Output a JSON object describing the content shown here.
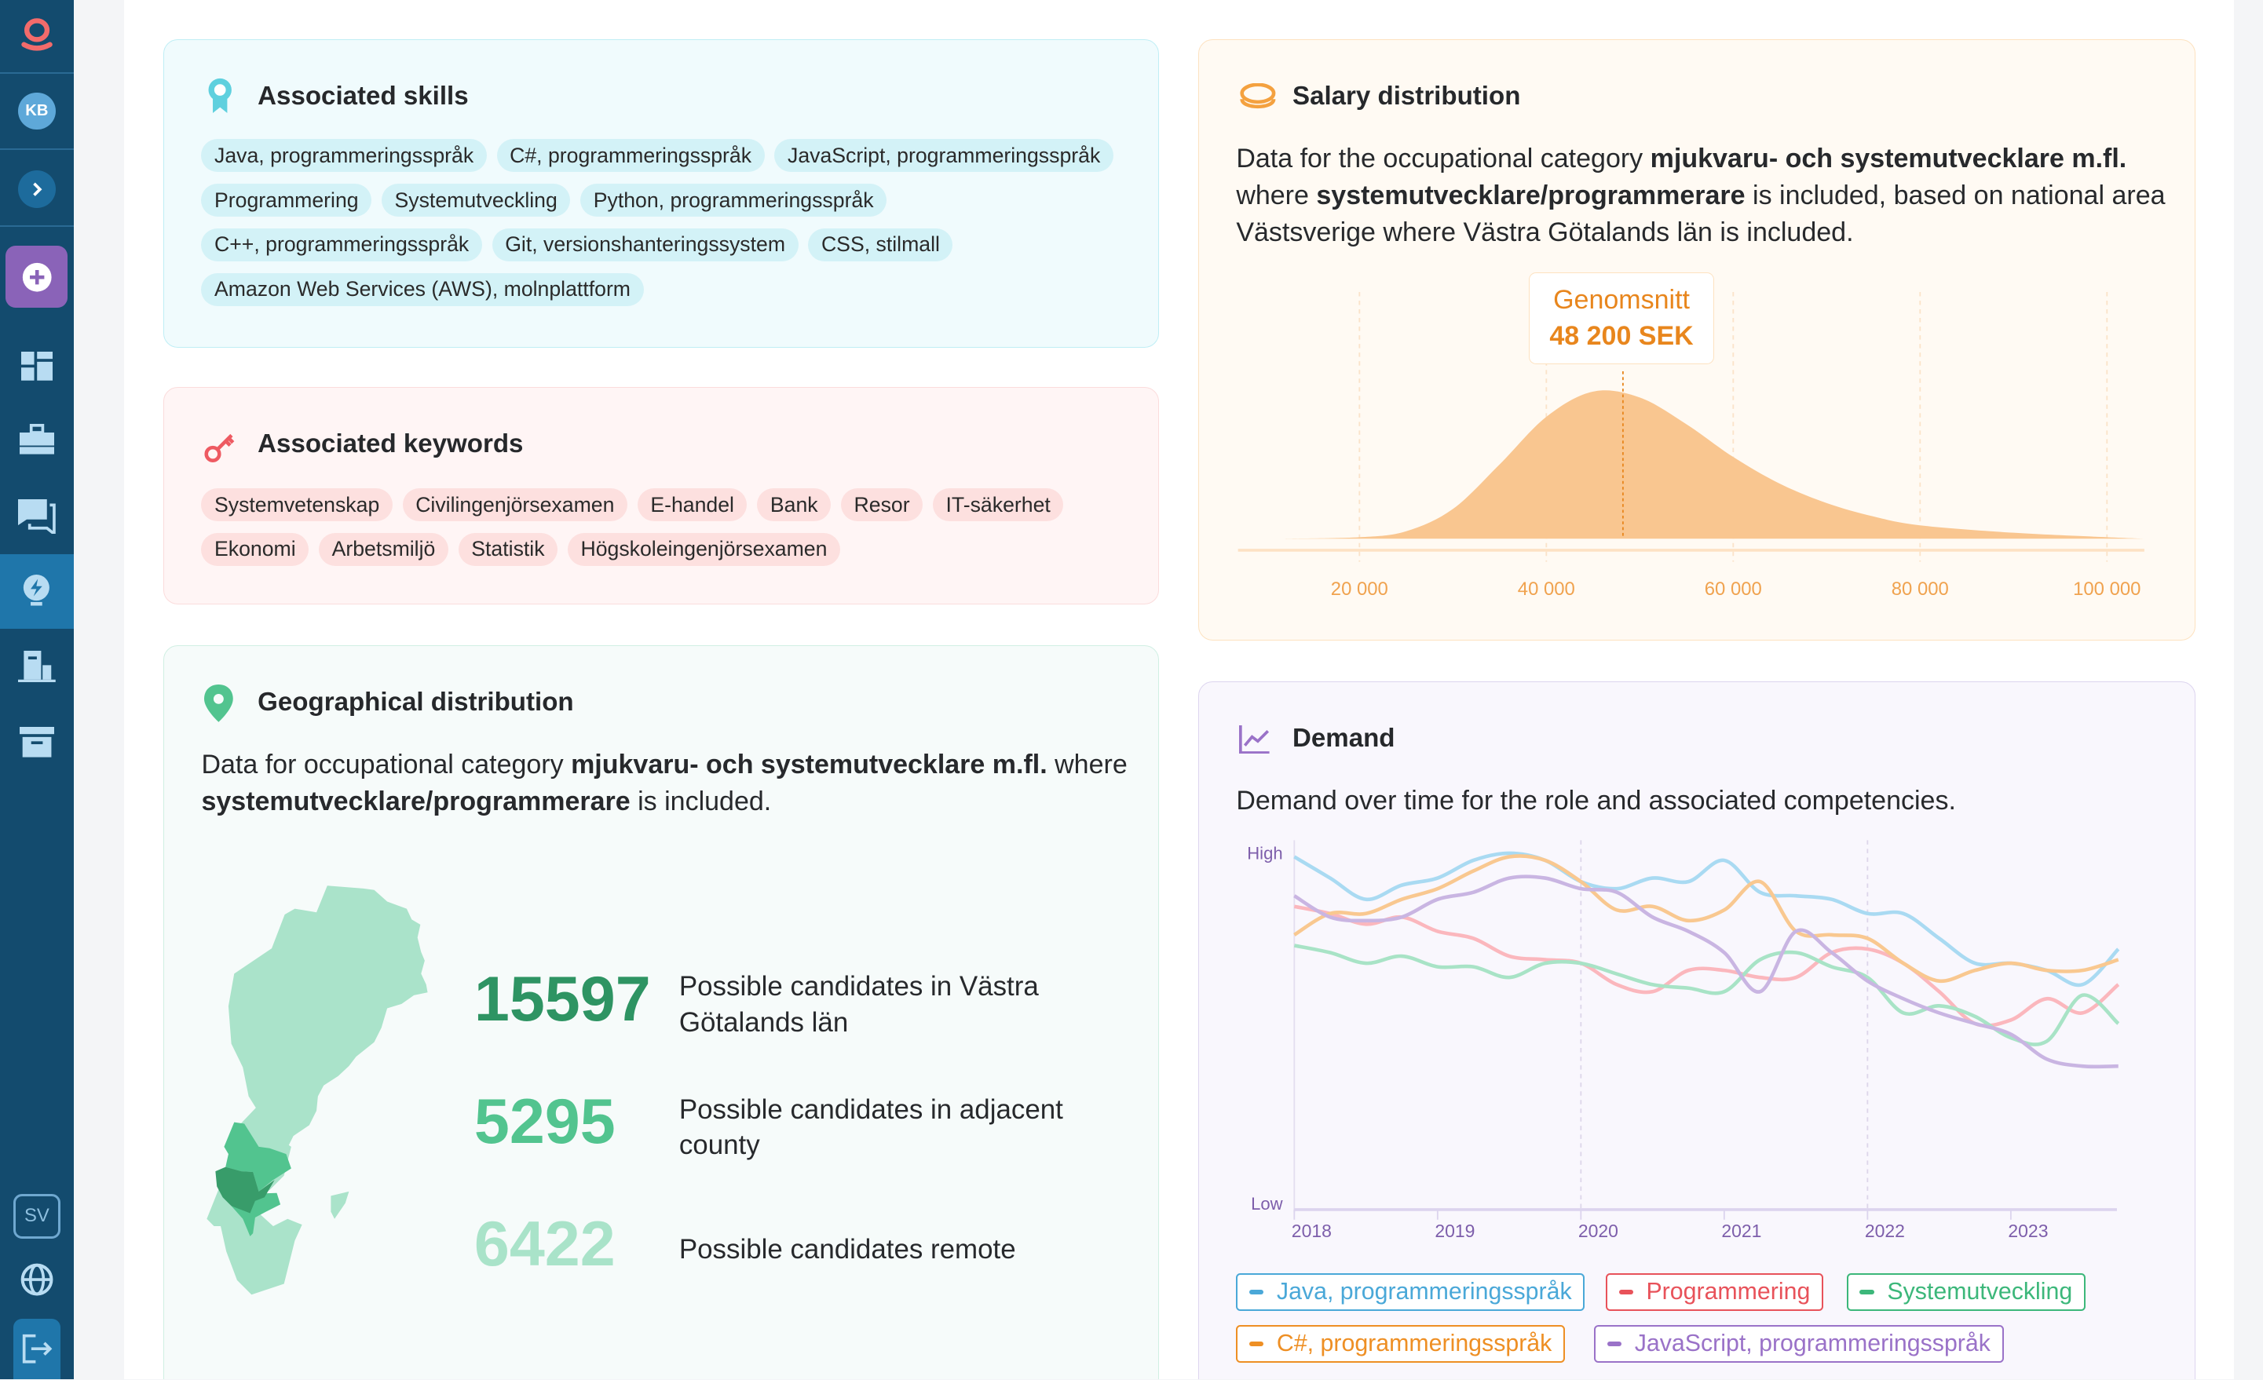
{
  "sidebar": {
    "user_initials": "KB",
    "language": "SV",
    "colors": {
      "bg": "#134b6e",
      "active": "#1f76aa",
      "ai_button": "#8a63b8"
    },
    "items": [
      {
        "icon": "dashboard-icon"
      },
      {
        "icon": "briefcase-icon"
      },
      {
        "icon": "chat-icon"
      },
      {
        "icon": "lightbulb-icon",
        "active": true
      },
      {
        "icon": "building-icon"
      },
      {
        "icon": "archive-icon"
      }
    ]
  },
  "skills": {
    "title": "Associated skills",
    "tags": [
      "Java, programmeringsspråk",
      "C#, programmeringsspråk",
      "JavaScript, programmeringsspråk",
      "Programmering",
      "Systemutveckling",
      "Python, programmeringsspråk",
      "C++, programmeringsspråk",
      "Git, versionshanteringssystem",
      "CSS, stilmall",
      "Amazon Web Services (AWS), molnplattform"
    ]
  },
  "keywords": {
    "title": "Associated keywords",
    "tags": [
      "Systemvetenskap",
      "Civilingenjörsexamen",
      "E-handel",
      "Bank",
      "Resor",
      "IT-säkerhet",
      "Ekonomi",
      "Arbetsmiljö",
      "Statistik",
      "Högskoleingenjörsexamen"
    ]
  },
  "geo": {
    "title": "Geographical distribution",
    "desc_1": "Data for occupational category ",
    "desc_b1": "mjukvaru- och systemutvecklare m.fl.",
    "desc_2": " where ",
    "desc_b2": "systemutvecklare/programmerare",
    "desc_3": " is included.",
    "stats": [
      {
        "value": "15597",
        "label": "Possible candidates in Västra Götalands län",
        "color": "#2e9463"
      },
      {
        "value": "5295",
        "label": "Possible candidates in adjacent county",
        "color": "#52c48f"
      },
      {
        "value": "6422",
        "label": "Possible candidates remote",
        "color": "#a9e3c9"
      }
    ]
  },
  "salary": {
    "title": "Salary distribution",
    "desc_1": "Data for the occupational category ",
    "desc_b1": "mjukvaru- och systemutvecklare m.fl.",
    "desc_2": " where ",
    "desc_b2": "systemutvecklare/programmerare",
    "desc_3": " is included, based on national area Västsverige where Västra Götalands län is included.",
    "avg_label": "Genomsnitt",
    "avg_value": "48 200 SEK"
  },
  "demand": {
    "title": "Demand",
    "desc": "Demand over time for the role and associated competencies."
  },
  "chart_data": [
    {
      "type": "area",
      "title": "Salary distribution",
      "x_ticks": [
        "20 000",
        "40 000",
        "60 000",
        "80 000",
        "100 000"
      ],
      "xlim": [
        7000,
        104000
      ],
      "mean": 48200,
      "x": [
        12000,
        20000,
        25000,
        30000,
        35000,
        40000,
        45000,
        50000,
        55000,
        60000,
        65000,
        70000,
        75000,
        80000,
        90000,
        100000,
        104000
      ],
      "y": [
        0,
        1,
        5,
        20,
        50,
        82,
        99,
        95,
        77,
        55,
        37,
        24,
        15,
        9,
        4,
        1,
        0
      ],
      "color": "#f9c690",
      "grid": "vertical dashed"
    },
    {
      "type": "line",
      "title": "Demand",
      "y_ticks": [
        "High",
        "Low"
      ],
      "ylim": [
        0,
        100
      ],
      "x_ticks": [
        "2018",
        "2019",
        "2020",
        "2021",
        "2022",
        "2023"
      ],
      "x": [
        2018,
        2018.25,
        2018.5,
        2018.75,
        2019,
        2019.25,
        2019.5,
        2019.75,
        2020,
        2020.25,
        2020.5,
        2020.75,
        2021,
        2021.25,
        2021.5,
        2021.75,
        2022,
        2022.25,
        2022.5,
        2022.75,
        2023,
        2023.25,
        2023.5,
        2023.75
      ],
      "series": [
        {
          "name": "Java, programmeringsspråk",
          "color": "#4aa8d8",
          "line": "#a9daf2",
          "values": [
            99,
            93,
            87,
            91,
            93,
            98,
            100,
            98,
            92,
            90,
            93,
            92,
            98,
            89,
            88,
            87,
            83,
            83,
            76,
            69,
            69,
            67,
            63,
            73
          ]
        },
        {
          "name": "Programmering",
          "color": "#e8525a",
          "line": "#fbb7bd",
          "values": [
            85,
            83,
            80,
            82,
            78,
            76,
            71,
            70,
            69,
            63,
            61,
            67,
            67,
            65,
            65,
            72,
            73,
            69,
            61,
            52,
            53,
            59,
            55,
            63
          ]
        },
        {
          "name": "Systemutveckling",
          "color": "#3cb77a",
          "line": "#a8e3c6",
          "values": [
            74,
            72,
            69,
            71,
            68,
            68,
            65,
            69,
            69,
            66,
            63,
            62,
            61,
            70,
            72,
            68,
            65,
            55,
            57,
            54,
            48,
            47,
            60,
            52
          ]
        },
        {
          "name": "C#, programmeringsspråk",
          "color": "#ee8f24",
          "line": "#f9c890",
          "values": [
            77,
            83,
            83,
            87,
            90,
            95,
            99,
            98,
            92,
            84,
            85,
            81,
            84,
            92,
            78,
            77,
            76,
            69,
            64,
            67,
            69,
            67,
            67,
            70
          ]
        },
        {
          "name": "JavaScript, programmeringsspråk",
          "color": "#9a72c8",
          "line": "#c9b5e2",
          "values": [
            88,
            82,
            81,
            82,
            87,
            89,
            93,
            93,
            90,
            89,
            82,
            78,
            72,
            61,
            78,
            72,
            64,
            59,
            55,
            52,
            49,
            42,
            40,
            40
          ]
        }
      ]
    }
  ]
}
